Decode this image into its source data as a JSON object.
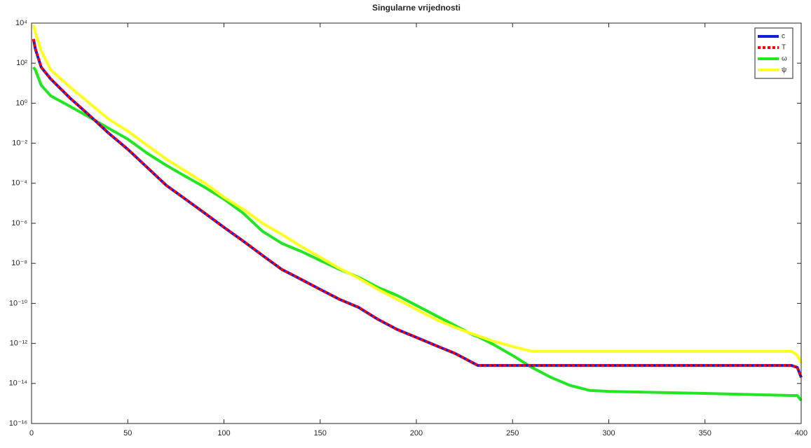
{
  "chart_data": {
    "type": "line",
    "title": "Singularne vrijednosti",
    "x": [
      1,
      2,
      5,
      10,
      20,
      30,
      40,
      50,
      60,
      70,
      80,
      90,
      100,
      110,
      120,
      130,
      140,
      150,
      160,
      170,
      180,
      190,
      200,
      210,
      220,
      230,
      232,
      240,
      250,
      260,
      270,
      280,
      290,
      300,
      350,
      395,
      398,
      400
    ],
    "series": [
      {
        "name": "c",
        "color": "#1020d8",
        "linestyle": "solid",
        "values": [
          1600,
          500,
          63,
          16,
          1.8,
          0.25,
          0.032,
          0.005,
          0.00063,
          7.9e-05,
          1.6e-05,
          3.2e-06,
          6.3e-07,
          1.3e-07,
          2.5e-08,
          5e-09,
          1.6e-09,
          5e-10,
          1.6e-10,
          6.3e-11,
          1.6e-11,
          5e-12,
          2e-12,
          7.9e-13,
          3.2e-13,
          1e-13,
          7.9e-14,
          7.9e-14,
          7.9e-14,
          7.9e-14,
          7.9e-14,
          7.9e-14,
          7.9e-14,
          7.9e-14,
          7.9e-14,
          7.9e-14,
          6.3e-14,
          2e-14
        ]
      },
      {
        "name": "T",
        "color": "#ff0000",
        "linestyle": "dotted",
        "values": [
          1600,
          500,
          63,
          16,
          1.8,
          0.25,
          0.032,
          0.005,
          0.00063,
          7.9e-05,
          1.6e-05,
          3.2e-06,
          6.3e-07,
          1.3e-07,
          2.5e-08,
          5e-09,
          1.6e-09,
          5e-10,
          1.6e-10,
          6.3e-11,
          1.6e-11,
          5e-12,
          2e-12,
          7.9e-13,
          3.2e-13,
          1e-13,
          7.9e-14,
          7.9e-14,
          7.9e-14,
          7.9e-14,
          7.9e-14,
          7.9e-14,
          7.9e-14,
          7.9e-14,
          7.9e-14,
          7.9e-14,
          6.3e-14,
          2e-14
        ]
      },
      {
        "name": "ω",
        "color": "#22e622",
        "linestyle": "solid",
        "values": [
          63,
          45,
          7.9,
          2.3,
          0.69,
          0.2,
          0.056,
          0.016,
          0.0032,
          0.00079,
          0.00022,
          6.3e-05,
          1.6e-05,
          3.2e-06,
          4e-07,
          1e-07,
          4e-08,
          1.4e-08,
          5e-09,
          2e-09,
          6.3e-10,
          2.5e-10,
          7.9e-11,
          2.5e-11,
          7.9e-12,
          2.5e-12,
          2.2e-12,
          8.9e-13,
          2.5e-13,
          6.3e-14,
          2e-14,
          7.9e-15,
          4.5e-15,
          4e-15,
          3.2e-15,
          2.5e-15,
          2.5e-15,
          1.4e-15
        ]
      },
      {
        "name": "ψ",
        "color": "#ffff22",
        "linestyle": "solid",
        "values": [
          7900,
          3200,
          400,
          45,
          6.3,
          1,
          0.16,
          0.04,
          0.0079,
          0.0016,
          0.0004,
          0.0001,
          2e-05,
          5e-06,
          1e-06,
          2.8e-07,
          7e-08,
          2e-08,
          5.6e-09,
          1.8e-09,
          5e-10,
          1.6e-10,
          5e-11,
          1.6e-11,
          6.3e-12,
          2.8e-12,
          2.4e-12,
          1.3e-12,
          7e-13,
          4e-13,
          4e-13,
          4e-13,
          4e-13,
          4e-13,
          4e-13,
          4e-13,
          2.5e-13,
          1e-13
        ]
      }
    ],
    "xlim": [
      0,
      400
    ],
    "xticks": [
      0,
      50,
      100,
      150,
      200,
      250,
      300,
      350,
      400
    ],
    "ylim": [
      1e-16,
      10000
    ],
    "ylog": true,
    "yticks": [
      {
        "value": 1e-16,
        "label": "10⁻¹⁶"
      },
      {
        "value": 1e-14,
        "label": "10⁻¹⁴"
      },
      {
        "value": 1e-12,
        "label": "10⁻¹²"
      },
      {
        "value": 1e-10,
        "label": "10⁻¹⁰"
      },
      {
        "value": 1e-08,
        "label": "10⁻⁸"
      },
      {
        "value": 1e-06,
        "label": "10⁻⁶"
      },
      {
        "value": 0.0001,
        "label": "10⁻⁴"
      },
      {
        "value": 0.01,
        "label": "10⁻²"
      },
      {
        "value": 1,
        "label": "10⁰"
      },
      {
        "value": 100,
        "label": "10²"
      },
      {
        "value": 10000,
        "label": "10⁴"
      }
    ],
    "grid": false,
    "legend": "top-right"
  }
}
